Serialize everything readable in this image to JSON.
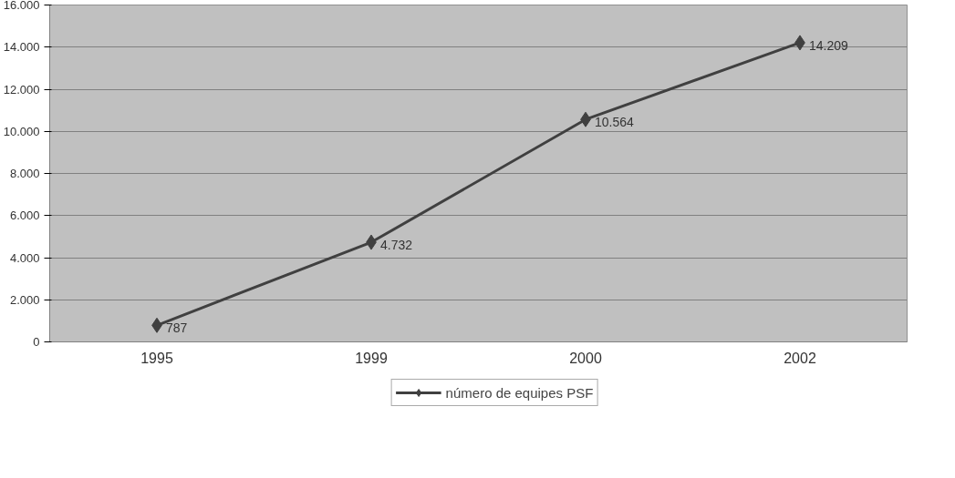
{
  "chart_data": {
    "type": "line",
    "categories": [
      "1995",
      "1999",
      "2000",
      "2002"
    ],
    "series": [
      {
        "name": "número de equipes PSF",
        "color": "#404040",
        "values": [
          787,
          4732,
          10564,
          14209
        ],
        "value_labels": [
          "787",
          "4.732",
          "10.564",
          "14.209"
        ]
      }
    ],
    "ylim": [
      0,
      16000
    ],
    "yticks": [
      0,
      {
        "value": 2000,
        "label": "2.000"
      },
      {
        "value": 4000,
        "label": "4.000"
      },
      {
        "value": 6000,
        "label": "6.000"
      },
      {
        "value": 8000,
        "label": "8.000"
      },
      {
        "value": 10000,
        "label": "10.000"
      },
      {
        "value": 12000,
        "label": "12.000"
      },
      {
        "value": 14000,
        "label": "14.000"
      },
      {
        "value": 16000,
        "label": "16.000"
      }
    ],
    "grid": "y",
    "legend": "bottom",
    "marker": "diamond",
    "line_style": "solid"
  }
}
